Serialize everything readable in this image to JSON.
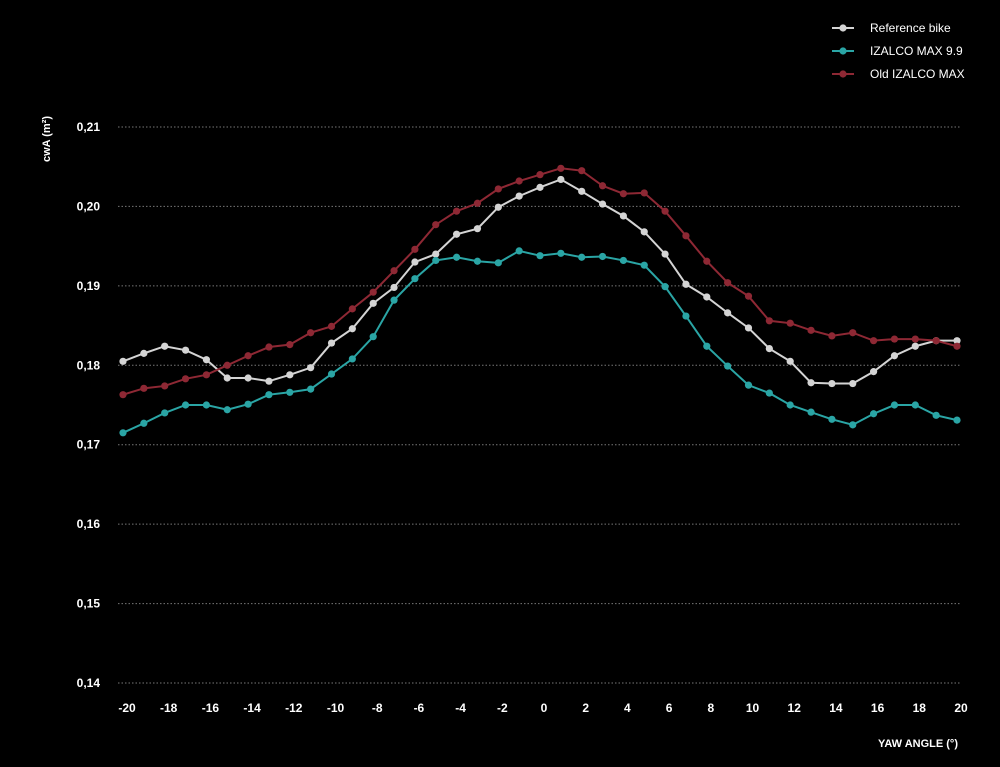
{
  "chart_data": {
    "type": "line",
    "title": "",
    "xlabel": "YAW ANGLE (°)",
    "ylabel": "cwA (m²)",
    "xlim": [
      -20,
      20
    ],
    "ylim": [
      0.14,
      0.21
    ],
    "grid": true,
    "legend_position": "top-right",
    "x_ticks": [
      "-20",
      "-18",
      "-16",
      "-14",
      "-12",
      "-10",
      "-8",
      "-6",
      "-4",
      "-2",
      "0",
      "2",
      "4",
      "6",
      "8",
      "10",
      "12",
      "14",
      "16",
      "18",
      "20"
    ],
    "y_ticks": [
      "0,14",
      "0,15",
      "0,16",
      "0,17",
      "0,18",
      "0,19",
      "0,20",
      "0,21"
    ],
    "x": [
      -20,
      -19,
      -18,
      -17,
      -16,
      -15,
      -14,
      -13,
      -12,
      -11,
      -10,
      -9,
      -8,
      -7,
      -6,
      -5,
      -4,
      -3,
      -2,
      -1,
      0,
      1,
      2,
      3,
      4,
      5,
      6,
      7,
      8,
      9,
      10,
      11,
      12,
      13,
      14,
      15,
      16,
      17,
      18,
      19,
      20
    ],
    "series": [
      {
        "name": "Reference bike",
        "color": "#d4d4d4",
        "values": [
          0.1805,
          0.1815,
          0.1824,
          0.1819,
          0.1807,
          0.1784,
          0.1784,
          0.178,
          0.1788,
          0.1797,
          0.1828,
          0.1846,
          0.1878,
          0.1898,
          0.193,
          0.194,
          0.1965,
          0.1972,
          0.1999,
          0.2013,
          0.2024,
          0.2034,
          0.2019,
          0.2003,
          0.1988,
          0.1968,
          0.194,
          0.1902,
          0.1886,
          0.1866,
          0.1847,
          0.1821,
          0.1805,
          0.1778,
          0.1777,
          0.1777,
          0.1792,
          0.1812,
          0.1824,
          0.1831,
          0.1831
        ]
      },
      {
        "name": "IZALCO MAX 9.9",
        "color": "#2aa5a5",
        "values": [
          0.1715,
          0.1727,
          0.174,
          0.175,
          0.175,
          0.1744,
          0.1751,
          0.1763,
          0.1766,
          0.177,
          0.1789,
          0.1808,
          0.1836,
          0.1882,
          0.1909,
          0.1932,
          0.1936,
          0.1931,
          0.1929,
          0.1944,
          0.1938,
          0.1941,
          0.1936,
          0.1937,
          0.1932,
          0.1926,
          0.1899,
          0.1862,
          0.1824,
          0.1799,
          0.1775,
          0.1765,
          0.175,
          0.1741,
          0.1732,
          0.1725,
          0.1739,
          0.175,
          0.175,
          0.1737,
          0.1731
        ]
      },
      {
        "name": "Old IZALCO MAX",
        "color": "#8e2834",
        "values": [
          0.1763,
          0.1771,
          0.1774,
          0.1783,
          0.1788,
          0.18,
          0.1812,
          0.1823,
          0.1826,
          0.1841,
          0.1849,
          0.1871,
          0.1892,
          0.1919,
          0.1946,
          0.1977,
          0.1994,
          0.2004,
          0.2022,
          0.2032,
          0.204,
          0.2048,
          0.2045,
          0.2026,
          0.2016,
          0.2017,
          0.1994,
          0.1963,
          0.1931,
          0.1904,
          0.1887,
          0.1856,
          0.1853,
          0.1844,
          0.1837,
          0.1841,
          0.1831,
          0.1833,
          0.1833,
          0.1831,
          0.1824
        ]
      }
    ]
  }
}
